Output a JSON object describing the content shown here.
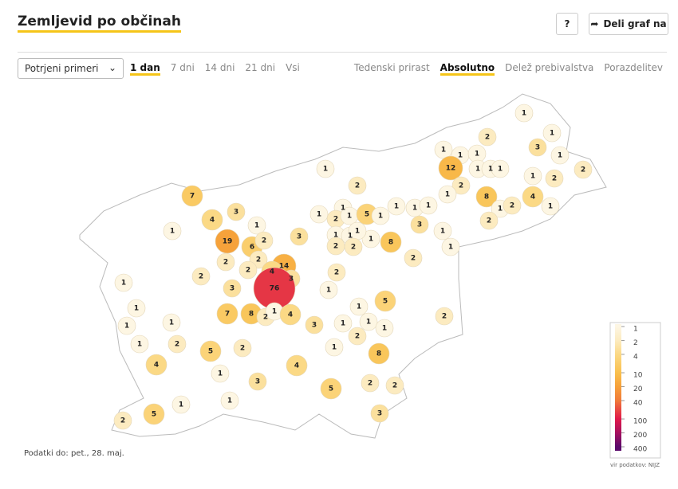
{
  "header": {
    "title": "Zemljevid po občinah",
    "help": "?",
    "share": "Deli graf na"
  },
  "controls": {
    "select": "Potrjeni primeri",
    "periods": [
      "1 dan",
      "7 dni",
      "14 dni",
      "21 dni",
      "Vsi"
    ],
    "modes": [
      "Tedenski prirast",
      "Absolutno",
      "Delež prebivalstva",
      "Porazdelitev"
    ]
  },
  "map": {
    "values": [
      1,
      1,
      2,
      3,
      1,
      2,
      1,
      1,
      1,
      12,
      1,
      1,
      1,
      1,
      2,
      1,
      2,
      7,
      2,
      1,
      8,
      1,
      2,
      4,
      1,
      4,
      3,
      1,
      1,
      2,
      1,
      5,
      1,
      1,
      1,
      1,
      1,
      1,
      3,
      1,
      1,
      1,
      1,
      3,
      1,
      2,
      19,
      6,
      2,
      2,
      8,
      1,
      2,
      2,
      2,
      14,
      2,
      2,
      4,
      3,
      2,
      1,
      3,
      2,
      76,
      1,
      5,
      1,
      7,
      8,
      2,
      1,
      4,
      1,
      1,
      1,
      3,
      1,
      1,
      2,
      1,
      2,
      5,
      2,
      1,
      2,
      1,
      8,
      4,
      1,
      4,
      3,
      2,
      2,
      5,
      1,
      1,
      5,
      2,
      3
    ]
  },
  "legend": {
    "log": true,
    "lim": [
      1,
      400
    ],
    "ticks": [
      1,
      2,
      4,
      10,
      20,
      40,
      100,
      200,
      400
    ],
    "colors": [
      "#fdf6e3",
      "#fcebc0",
      "#fbd985",
      "#f9c04e",
      "#f6a03a",
      "#f07a3a",
      "#e0194a",
      "#a5105e",
      "#5a0a6b"
    ]
  },
  "footer": {
    "updated": "Podatki do: pet., 28. maj.",
    "source": "vir podatkov: NIJZ"
  }
}
